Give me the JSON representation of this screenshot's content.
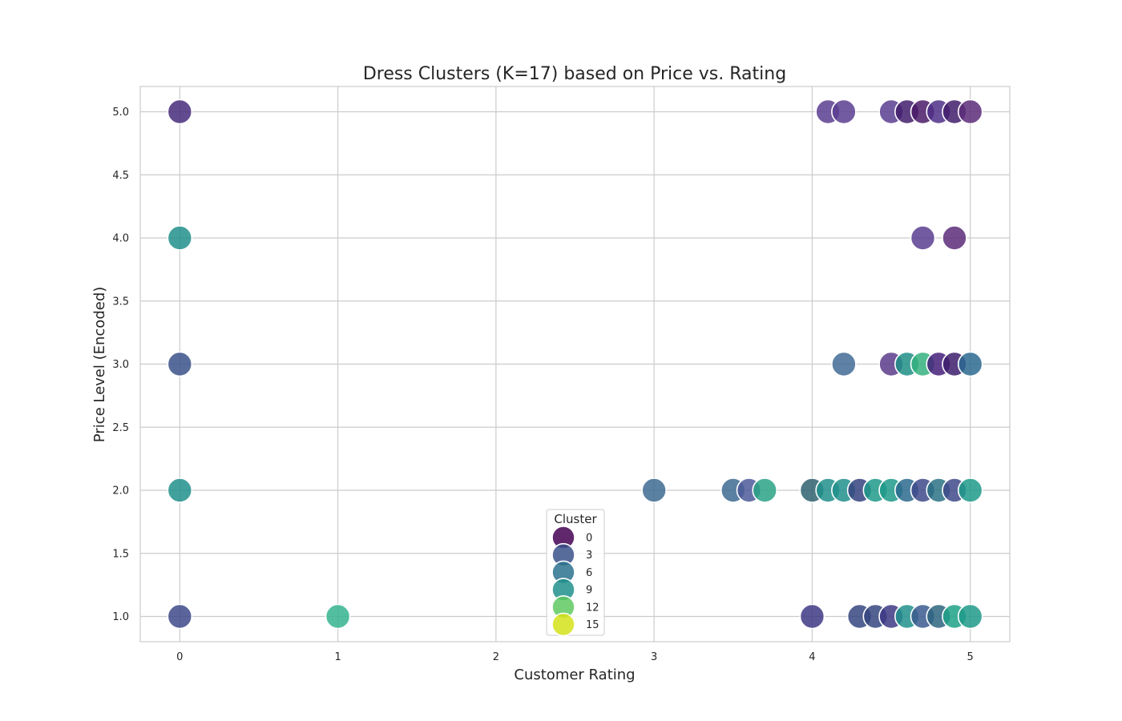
{
  "chart_data": {
    "type": "scatter",
    "title": "Dress Clusters (K=17) based on Price vs. Rating",
    "xlabel": "Customer Rating",
    "ylabel": "Price Level (Encoded)",
    "xlim": [
      -0.25,
      5.25
    ],
    "ylim": [
      0.8,
      5.2
    ],
    "x_ticks": [
      0,
      1,
      2,
      3,
      4,
      5
    ],
    "y_ticks": [
      1.0,
      1.5,
      2.0,
      2.5,
      3.0,
      3.5,
      4.0,
      4.5,
      5.0
    ],
    "x_tick_labels": [
      "0",
      "1",
      "2",
      "3",
      "4",
      "5"
    ],
    "y_tick_labels": [
      "1.0",
      "1.5",
      "2.0",
      "2.5",
      "3.0",
      "3.5",
      "4.0",
      "4.5",
      "5.0"
    ],
    "grid": true,
    "legend": {
      "title": "Cluster",
      "placement": "lower-center",
      "entries": [
        {
          "label": "0",
          "color": "#440154"
        },
        {
          "label": "3",
          "color": "#3b528b"
        },
        {
          "label": "6",
          "color": "#2c728e"
        },
        {
          "label": "9",
          "color": "#21918c"
        },
        {
          "label": "12",
          "color": "#5ec962"
        },
        {
          "label": "15",
          "color": "#d5e21b"
        }
      ]
    },
    "points": [
      {
        "x": 0,
        "y": 5.0,
        "cluster": 2,
        "color": "#472d7b"
      },
      {
        "x": 0,
        "y": 4.0,
        "cluster": 9,
        "color": "#21918c"
      },
      {
        "x": 0,
        "y": 3.0,
        "cluster": 4,
        "color": "#3b528b"
      },
      {
        "x": 0,
        "y": 2.0,
        "cluster": 9,
        "color": "#21918c"
      },
      {
        "x": 0,
        "y": 1.0,
        "cluster": 3,
        "color": "#3e4a89"
      },
      {
        "x": 1.0,
        "y": 1.0,
        "cluster": 10,
        "color": "#35b48f"
      },
      {
        "x": 3.0,
        "y": 2.0,
        "cluster": 6,
        "color": "#3d6a92"
      },
      {
        "x": 3.5,
        "y": 2.0,
        "cluster": 6,
        "color": "#3d6a92"
      },
      {
        "x": 3.6,
        "y": 2.0,
        "cluster": 5,
        "color": "#4c5a9a"
      },
      {
        "x": 3.7,
        "y": 2.0,
        "cluster": 11,
        "color": "#2aa386"
      },
      {
        "x": 4.0,
        "y": 2.0,
        "cluster": 7,
        "color": "#2f6170"
      },
      {
        "x": 4.1,
        "y": 2.0,
        "cluster": 9,
        "color": "#21918c"
      },
      {
        "x": 4.2,
        "y": 2.0,
        "cluster": 9,
        "color": "#21918c"
      },
      {
        "x": 4.3,
        "y": 2.0,
        "cluster": 4,
        "color": "#35437f"
      },
      {
        "x": 4.4,
        "y": 2.0,
        "cluster": 10,
        "color": "#1f9a8a"
      },
      {
        "x": 4.5,
        "y": 2.0,
        "cluster": 10,
        "color": "#1f9a8a"
      },
      {
        "x": 4.6,
        "y": 2.0,
        "cluster": 7,
        "color": "#2b6a8e"
      },
      {
        "x": 4.7,
        "y": 2.0,
        "cluster": 3,
        "color": "#3e4a89"
      },
      {
        "x": 4.8,
        "y": 2.0,
        "cluster": 8,
        "color": "#2c7285"
      },
      {
        "x": 4.9,
        "y": 2.0,
        "cluster": 3,
        "color": "#3e4a89"
      },
      {
        "x": 5.0,
        "y": 2.0,
        "cluster": 10,
        "color": "#1f9a8a"
      },
      {
        "x": 4.0,
        "y": 1.0,
        "cluster": 3,
        "color": "#3e3a85"
      },
      {
        "x": 4.3,
        "y": 1.0,
        "cluster": 4,
        "color": "#35467f"
      },
      {
        "x": 4.4,
        "y": 1.0,
        "cluster": 4,
        "color": "#35467f"
      },
      {
        "x": 4.5,
        "y": 1.0,
        "cluster": 3,
        "color": "#3e3a85"
      },
      {
        "x": 4.6,
        "y": 1.0,
        "cluster": 9,
        "color": "#21918c"
      },
      {
        "x": 4.7,
        "y": 1.0,
        "cluster": 6,
        "color": "#3b5a8f"
      },
      {
        "x": 4.8,
        "y": 1.0,
        "cluster": 7,
        "color": "#2e6580"
      },
      {
        "x": 4.9,
        "y": 1.0,
        "cluster": 10,
        "color": "#1fa187"
      },
      {
        "x": 5.0,
        "y": 1.0,
        "cluster": 10,
        "color": "#1f9a8a"
      },
      {
        "x": 4.2,
        "y": 3.0,
        "cluster": 6,
        "color": "#426b95"
      },
      {
        "x": 4.5,
        "y": 3.0,
        "cluster": 1,
        "color": "#5b3c8b"
      },
      {
        "x": 4.6,
        "y": 3.0,
        "cluster": 9,
        "color": "#1f8f86"
      },
      {
        "x": 4.7,
        "y": 3.0,
        "cluster": 11,
        "color": "#35b07f"
      },
      {
        "x": 4.8,
        "y": 3.0,
        "cluster": 2,
        "color": "#45207a"
      },
      {
        "x": 4.9,
        "y": 3.0,
        "cluster": 1,
        "color": "#3d1e6d"
      },
      {
        "x": 5.0,
        "y": 3.0,
        "cluster": 7,
        "color": "#2c6a90"
      },
      {
        "x": 4.7,
        "y": 4.0,
        "cluster": 1,
        "color": "#5a3e91"
      },
      {
        "x": 4.9,
        "y": 4.0,
        "cluster": 0,
        "color": "#5c2d7a"
      },
      {
        "x": 4.1,
        "y": 5.0,
        "cluster": 1,
        "color": "#5a3e91"
      },
      {
        "x": 4.2,
        "y": 5.0,
        "cluster": 1,
        "color": "#5a3e91"
      },
      {
        "x": 4.5,
        "y": 5.0,
        "cluster": 1,
        "color": "#5a3e91"
      },
      {
        "x": 4.6,
        "y": 5.0,
        "cluster": 2,
        "color": "#421d6c"
      },
      {
        "x": 4.7,
        "y": 5.0,
        "cluster": 0,
        "color": "#4b1b68"
      },
      {
        "x": 4.8,
        "y": 5.0,
        "cluster": 1,
        "color": "#4f3088"
      },
      {
        "x": 4.9,
        "y": 5.0,
        "cluster": 2,
        "color": "#421d6c"
      },
      {
        "x": 5.0,
        "y": 5.0,
        "cluster": 0,
        "color": "#5c2d7a"
      }
    ]
  }
}
